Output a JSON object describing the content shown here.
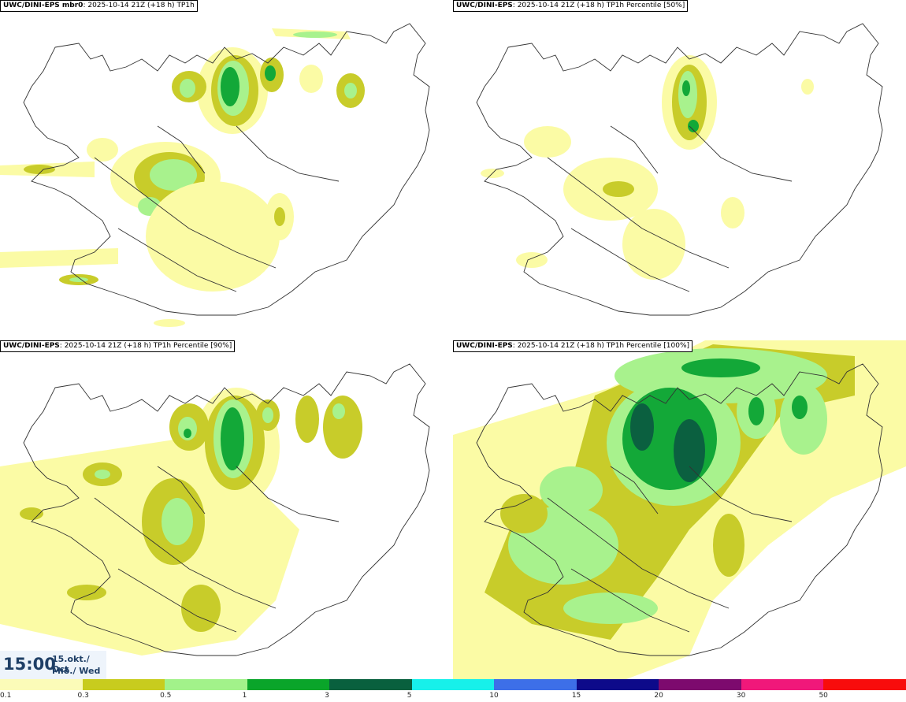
{
  "panels": [
    {
      "model": "UWC/DINI-EPS mbr0",
      "run": ": 2025-10-14 21Z (+18 h)",
      "field": " TP1h"
    },
    {
      "model": "UWC/DINI-EPS",
      "run": ": 2025-10-14 21Z (+18 h)",
      "field": " TP1h Percentile [50%]"
    },
    {
      "model": "UWC/DINI-EPS",
      "run": ": 2025-10-14 21Z (+18 h)",
      "field": " TP1h Percentile [90%]"
    },
    {
      "model": "UWC/DINI-EPS",
      "run": ": 2025-10-14 21Z (+18 h)",
      "field": " TP1h Percentile [100%]"
    }
  ],
  "valid_time": {
    "hour": "15:00",
    "date_line": "15.okt./ Oct",
    "day_line": "Mið./ Wed"
  },
  "colorbar": {
    "labels": [
      "0.1",
      "0.3",
      "0.5",
      "1",
      "3",
      "5",
      "10",
      "15",
      "20",
      "30",
      "50"
    ],
    "colors": [
      "#fbfbb8",
      "#c8cc1e",
      "#a2f28a",
      "#0aa52a",
      "#09603e",
      "#17f0ea",
      "#3d6fe8",
      "#0d0a8a",
      "#7d0a6e",
      "#f0187a",
      "#f80c0c"
    ]
  },
  "map_colors": {
    "c01": "#fbfba5",
    "c03": "#c8cc2a",
    "c05": "#a8f28d",
    "c1": "#13a838",
    "c3": "#0b6040"
  }
}
